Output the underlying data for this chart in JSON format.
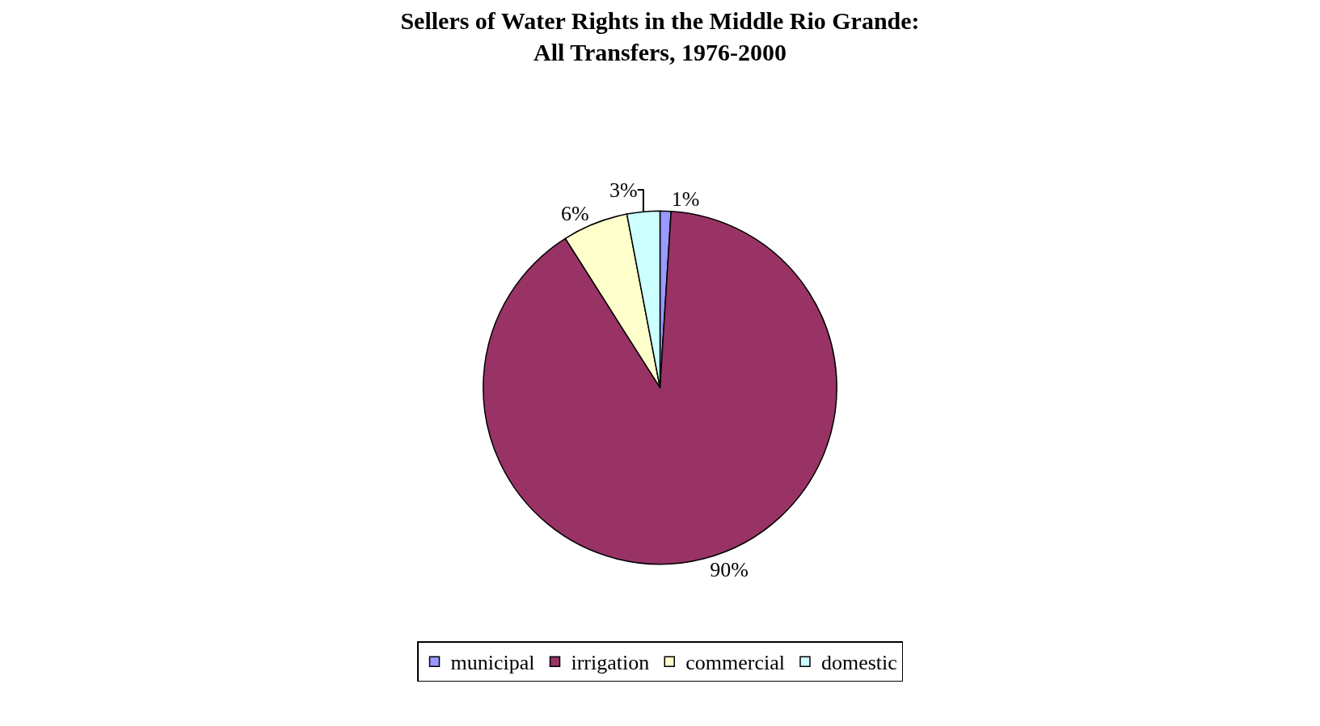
{
  "chart_data": {
    "type": "pie",
    "title": "Sellers of Water Rights in the Middle Rio Grande:\nAll Transfers, 1976-2000",
    "categories": [
      "municipal",
      "irrigation",
      "commercial",
      "domestic"
    ],
    "values": [
      1,
      90,
      6,
      3
    ],
    "value_labels": [
      "1%",
      "90%",
      "6%",
      "3%"
    ],
    "colors": [
      "#9999ff",
      "#993366",
      "#ffffcc",
      "#ccffff"
    ],
    "legend": "bottom"
  }
}
